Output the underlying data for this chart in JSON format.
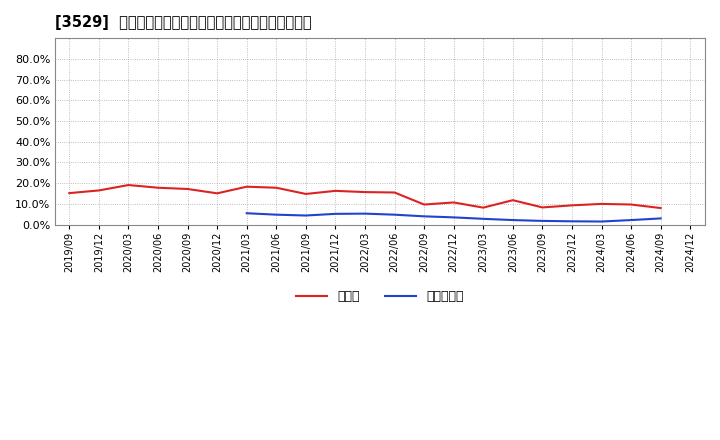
{
  "title": "[3529]  現預金、有利子負債の総資産に対する比率の推移",
  "x_labels": [
    "2019/09",
    "2019/12",
    "2020/03",
    "2020/06",
    "2020/09",
    "2020/12",
    "2021/03",
    "2021/06",
    "2021/09",
    "2021/12",
    "2022/03",
    "2022/06",
    "2022/09",
    "2022/12",
    "2023/03",
    "2023/06",
    "2023/09",
    "2023/12",
    "2024/03",
    "2024/06",
    "2024/09",
    "2024/12"
  ],
  "cash_values": [
    0.152,
    0.165,
    0.191,
    0.178,
    0.172,
    0.151,
    0.183,
    0.178,
    0.148,
    0.163,
    0.157,
    0.155,
    0.097,
    0.107,
    0.082,
    0.118,
    0.083,
    0.093,
    0.1,
    0.097,
    0.08,
    null
  ],
  "debt_values": [
    null,
    null,
    null,
    null,
    null,
    null,
    0.055,
    0.048,
    0.044,
    0.052,
    0.053,
    0.048,
    0.04,
    0.035,
    0.028,
    0.022,
    0.018,
    0.016,
    0.015,
    0.022,
    0.03,
    null
  ],
  "cash_color": "#dd2222",
  "debt_color": "#2244cc",
  "grid_color": "#aaaaaa",
  "bg_color": "#ffffff",
  "plot_bg_color": "#ffffff",
  "ylim": [
    0.0,
    0.9
  ],
  "yticks": [
    0.0,
    0.1,
    0.2,
    0.3,
    0.4,
    0.5,
    0.6,
    0.7,
    0.8
  ],
  "legend_cash": "現預金",
  "legend_debt": "有利子負債"
}
